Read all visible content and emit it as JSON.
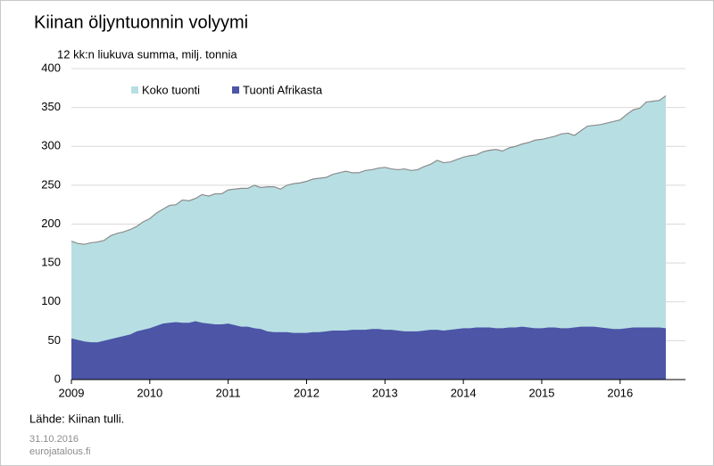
{
  "chart_data": {
    "type": "area",
    "title": "Kiinan öljyntuonnin volyymi",
    "subtitle": "12 kk:n liukuva summa, milj. tonnia",
    "source": "Lähde: Kiinan tulli.",
    "date": "31.10.2016",
    "site": "eurojatalous.fi",
    "categories": [
      "2009",
      null,
      null,
      null,
      null,
      null,
      null,
      null,
      null,
      null,
      null,
      null,
      "2010",
      null,
      null,
      null,
      null,
      null,
      null,
      null,
      null,
      null,
      null,
      null,
      "2011",
      null,
      null,
      null,
      null,
      null,
      null,
      null,
      null,
      null,
      null,
      null,
      "2012",
      null,
      null,
      null,
      null,
      null,
      null,
      null,
      null,
      null,
      null,
      null,
      "2013",
      null,
      null,
      null,
      null,
      null,
      null,
      null,
      null,
      null,
      null,
      null,
      "2014",
      null,
      null,
      null,
      null,
      null,
      null,
      null,
      null,
      null,
      null,
      null,
      "2015",
      null,
      null,
      null,
      null,
      null,
      null,
      null,
      null,
      null,
      null,
      null,
      "2016",
      null,
      null,
      null,
      null,
      null,
      null,
      null
    ],
    "series": [
      {
        "name": "Koko tuonti",
        "color": "#b7dfe3",
        "line_color": "#8c8c8c",
        "values": [
          178,
          175,
          174,
          176,
          177,
          179,
          185,
          188,
          190,
          193,
          197,
          203,
          207,
          214,
          219,
          224,
          225,
          231,
          230,
          233,
          238,
          236,
          239,
          239,
          244,
          245,
          246,
          246,
          250,
          247,
          248,
          248,
          245,
          250,
          252,
          253,
          255,
          258,
          259,
          260,
          264,
          266,
          268,
          266,
          266,
          269,
          270,
          272,
          273,
          271,
          270,
          271,
          269,
          270,
          274,
          277,
          282,
          279,
          280,
          283,
          286,
          288,
          289,
          293,
          295,
          296,
          294,
          298,
          300,
          303,
          305,
          308,
          309,
          311,
          313,
          316,
          317,
          314,
          320,
          326,
          327,
          328,
          330,
          332,
          334,
          341,
          347,
          349,
          357,
          358,
          359,
          365
        ]
      },
      {
        "name": "Tuonti Afrikasta",
        "color": "#4c55a6",
        "values": [
          53,
          51,
          49,
          48,
          48,
          50,
          52,
          54,
          56,
          58,
          62,
          64,
          66,
          69,
          72,
          73,
          74,
          73,
          73,
          75,
          73,
          72,
          71,
          71,
          72,
          70,
          68,
          68,
          66,
          65,
          62,
          61,
          61,
          61,
          60,
          60,
          60,
          61,
          61,
          62,
          63,
          63,
          63,
          64,
          64,
          64,
          65,
          65,
          64,
          64,
          63,
          62,
          62,
          62,
          63,
          64,
          64,
          63,
          64,
          65,
          66,
          66,
          67,
          67,
          67,
          66,
          66,
          67,
          67,
          68,
          67,
          66,
          66,
          67,
          67,
          66,
          66,
          67,
          68,
          68,
          68,
          67,
          66,
          65,
          65,
          66,
          67,
          67,
          67,
          67,
          67,
          66
        ]
      }
    ],
    "ylim": [
      0,
      400
    ],
    "yticks": [
      0,
      50,
      100,
      150,
      200,
      250,
      300,
      350,
      400
    ],
    "grid": true
  }
}
